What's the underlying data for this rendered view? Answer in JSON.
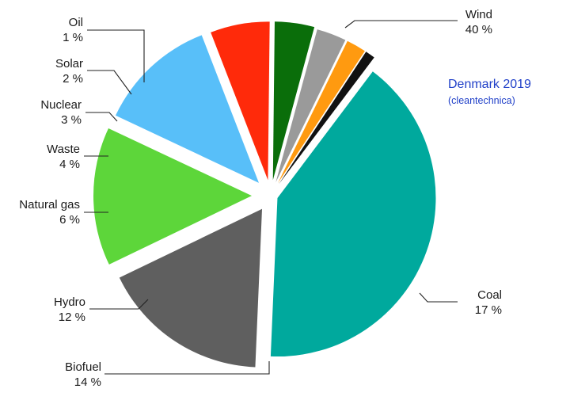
{
  "chart_data": {
    "type": "pie",
    "title": "Denmark 2019",
    "subtitle": "(cleantechnica)",
    "slices": [
      {
        "label": "Wind",
        "value": 40,
        "value_label": "40 %",
        "color": "#00a99d"
      },
      {
        "label": "Coal",
        "value": 17,
        "value_label": "17 %",
        "color": "#5f5f5f"
      },
      {
        "label": "Biofuel",
        "value": 14,
        "value_label": "14 %",
        "color": "#5dd63a"
      },
      {
        "label": "Hydro",
        "value": 12,
        "value_label": "12 %",
        "color": "#58bff9"
      },
      {
        "label": "Natural gas",
        "value": 6,
        "value_label": "6 %",
        "color": "#ff2a0a"
      },
      {
        "label": "Waste",
        "value": 4,
        "value_label": "4 %",
        "color": "#0a6e0a"
      },
      {
        "label": "Nuclear",
        "value": 3,
        "value_label": "3 %",
        "color": "#9a9a9a"
      },
      {
        "label": "Solar",
        "value": 2,
        "value_label": "2 %",
        "color": "#ff9a10"
      },
      {
        "label": "Oil",
        "value": 1,
        "value_label": "1 %",
        "color": "#111111"
      }
    ]
  }
}
